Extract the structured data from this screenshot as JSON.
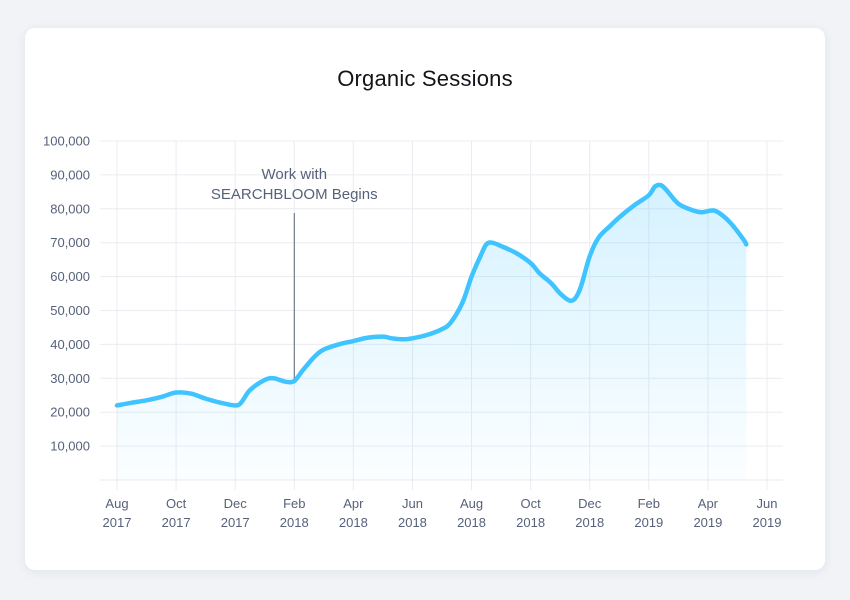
{
  "chart_data": {
    "type": "area",
    "title": "Organic Sessions",
    "xlabel": "",
    "ylabel": "",
    "ylim": [
      0,
      100000
    ],
    "y_ticks": [
      {
        "value": 10000,
        "label": "10,000"
      },
      {
        "value": 20000,
        "label": "20,000"
      },
      {
        "value": 30000,
        "label": "30,000"
      },
      {
        "value": 40000,
        "label": "40,000"
      },
      {
        "value": 50000,
        "label": "50,000"
      },
      {
        "value": 60000,
        "label": "60,000"
      },
      {
        "value": 70000,
        "label": "70,000"
      },
      {
        "value": 80000,
        "label": "80,000"
      },
      {
        "value": 90000,
        "label": "90,000"
      },
      {
        "value": 100000,
        "label": "100,000"
      }
    ],
    "x_ticks": [
      {
        "month": 0,
        "line1": "Aug",
        "line2": "2017"
      },
      {
        "month": 2,
        "line1": "Oct",
        "line2": "2017"
      },
      {
        "month": 4,
        "line1": "Dec",
        "line2": "2017"
      },
      {
        "month": 6,
        "line1": "Feb",
        "line2": "2018"
      },
      {
        "month": 8,
        "line1": "Apr",
        "line2": "2018"
      },
      {
        "month": 10,
        "line1": "Jun",
        "line2": "2018"
      },
      {
        "month": 12,
        "line1": "Aug",
        "line2": "2018"
      },
      {
        "month": 14,
        "line1": "Oct",
        "line2": "2018"
      },
      {
        "month": 16,
        "line1": "Dec",
        "line2": "2018"
      },
      {
        "month": 18,
        "line1": "Feb",
        "line2": "2019"
      },
      {
        "month": 20,
        "line1": "Apr",
        "line2": "2019"
      },
      {
        "month": 22,
        "line1": "Jun",
        "line2": "2019"
      }
    ],
    "x_range_months": [
      0,
      22
    ],
    "series": [
      {
        "name": "Organic Sessions",
        "color": "#40c4ff",
        "points": [
          [
            0.0,
            22000
          ],
          [
            0.5,
            22800
          ],
          [
            1.0,
            23500
          ],
          [
            1.5,
            24500
          ],
          [
            2.0,
            25800
          ],
          [
            2.5,
            25500
          ],
          [
            3.0,
            24000
          ],
          [
            3.5,
            22800
          ],
          [
            4.0,
            22000
          ],
          [
            4.2,
            22800
          ],
          [
            4.5,
            26500
          ],
          [
            5.0,
            29500
          ],
          [
            5.3,
            30000
          ],
          [
            5.7,
            29000
          ],
          [
            6.0,
            29200
          ],
          [
            6.3,
            32500
          ],
          [
            6.7,
            36500
          ],
          [
            7.0,
            38500
          ],
          [
            7.5,
            40000
          ],
          [
            8.0,
            41000
          ],
          [
            8.5,
            42000
          ],
          [
            9.0,
            42300
          ],
          [
            9.3,
            41800
          ],
          [
            9.7,
            41500
          ],
          [
            10.0,
            41800
          ],
          [
            10.5,
            42800
          ],
          [
            11.0,
            44500
          ],
          [
            11.3,
            46500
          ],
          [
            11.7,
            52500
          ],
          [
            12.0,
            60000
          ],
          [
            12.3,
            66000
          ],
          [
            12.5,
            69500
          ],
          [
            12.7,
            70000
          ],
          [
            13.0,
            69000
          ],
          [
            13.5,
            67000
          ],
          [
            14.0,
            64000
          ],
          [
            14.3,
            61000
          ],
          [
            14.7,
            58000
          ],
          [
            15.0,
            55000
          ],
          [
            15.3,
            53000
          ],
          [
            15.5,
            53500
          ],
          [
            15.7,
            57000
          ],
          [
            16.0,
            66000
          ],
          [
            16.3,
            71500
          ],
          [
            16.7,
            75000
          ],
          [
            17.0,
            77500
          ],
          [
            17.5,
            81000
          ],
          [
            18.0,
            84000
          ],
          [
            18.2,
            86500
          ],
          [
            18.4,
            87000
          ],
          [
            18.6,
            85500
          ],
          [
            19.0,
            81500
          ],
          [
            19.5,
            79500
          ],
          [
            19.8,
            79000
          ],
          [
            20.2,
            79500
          ],
          [
            20.5,
            78000
          ],
          [
            20.8,
            75500
          ],
          [
            21.2,
            71000
          ],
          [
            21.3,
            69500
          ]
        ]
      }
    ],
    "annotation": {
      "month": 6.0,
      "line1": "Work with",
      "line2": "SEARCHBLOOM Begins"
    },
    "grid": true
  }
}
